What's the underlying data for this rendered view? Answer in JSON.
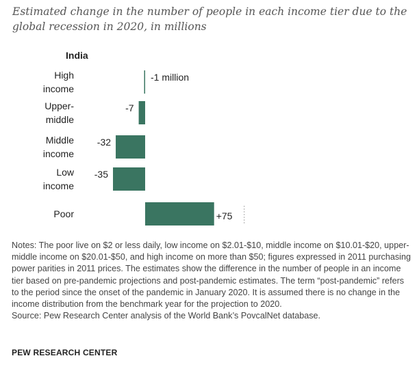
{
  "title": "Estimated change in the number of people in each income tier due to the global recession in 2020, in millions",
  "chart_data": {
    "type": "bar",
    "orientation": "horizontal",
    "panel_title": "India",
    "categories": [
      [
        "High",
        "income"
      ],
      [
        "Upper-",
        "middle"
      ],
      [
        "Middle",
        "income"
      ],
      [
        "Low",
        "income"
      ],
      [
        "Poor"
      ]
    ],
    "values": [
      -1,
      -7,
      -32,
      -35,
      75
    ],
    "value_labels": [
      "-1 million",
      "-7",
      "-32",
      "-35",
      "+75"
    ],
    "bar_color": "#3a7561",
    "zero_line_color": "#aaaaaa",
    "xlim": [
      -36,
      76
    ]
  },
  "notes": "Notes: The poor live on $2 or less daily, low income on $2.01-$10, middle income on $10.01-$20, upper-middle income on $20.01-$50, and high income on more than $50; figures expressed in 2011 purchasing power parities in 2011 prices. The estimates show the difference in the number of people in an income tier based on pre-pandemic projections and post-pandemic estimates. The term “post-pandemic” refers to the period since the onset of the pandemic in January 2020. It is assumed there is no change in the income distribution from the benchmark year for the projection to 2020.",
  "source": "Source: Pew Research Center analysis of the World Bank’s PovcalNet database.",
  "brand": "PEW RESEARCH CENTER"
}
